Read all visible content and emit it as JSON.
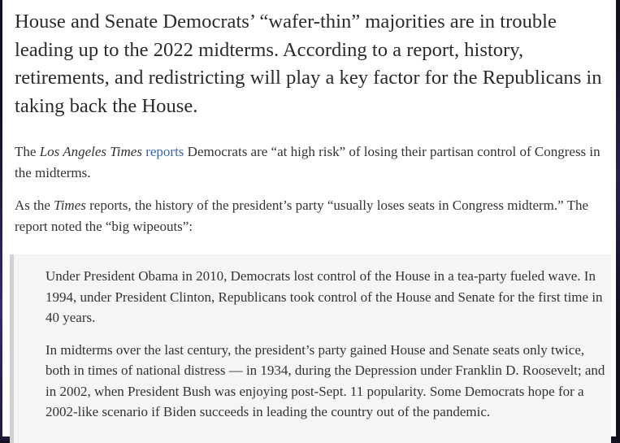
{
  "article": {
    "headline": "House and Senate Democrats’ “wafer-thin” majorities are in trouble leading up to the 2022 midterms. According to a report, history, retirements, and redistricting will play a key factor for the Republicans in taking back the House.",
    "paragraph1": {
      "prefix": "The ",
      "publication": "Los Angeles Times",
      "space": " ",
      "link_text": "reports",
      "suffix": " Democrats are “at high risk” of losing their partisan control of Congress in the midterms."
    },
    "paragraph2": {
      "prefix": "As the ",
      "publication": "Times",
      "suffix": " reports, the history of the president’s party “usually loses seats in Congress midterm.” The report noted the “big wipeouts”:"
    },
    "blockquote": [
      "Under President Obama in 2010, Democrats lost control of the House in a tea-party fueled wave. In 1994, under President Clinton, Republicans took control of the House and Senate for the first time in 40 years.",
      "In midterms over the last century, the president’s party gained House and Senate seats only twice, both in times of national distress — in 1934, during the Depression under Franklin D. Roosevelt; and in 2002, when President Bush was enjoying post-Sept. 11 popularity. Some Democrats hope for a 2002-like scenario if Biden succeeds in leading the country out of the pandemic."
    ]
  }
}
